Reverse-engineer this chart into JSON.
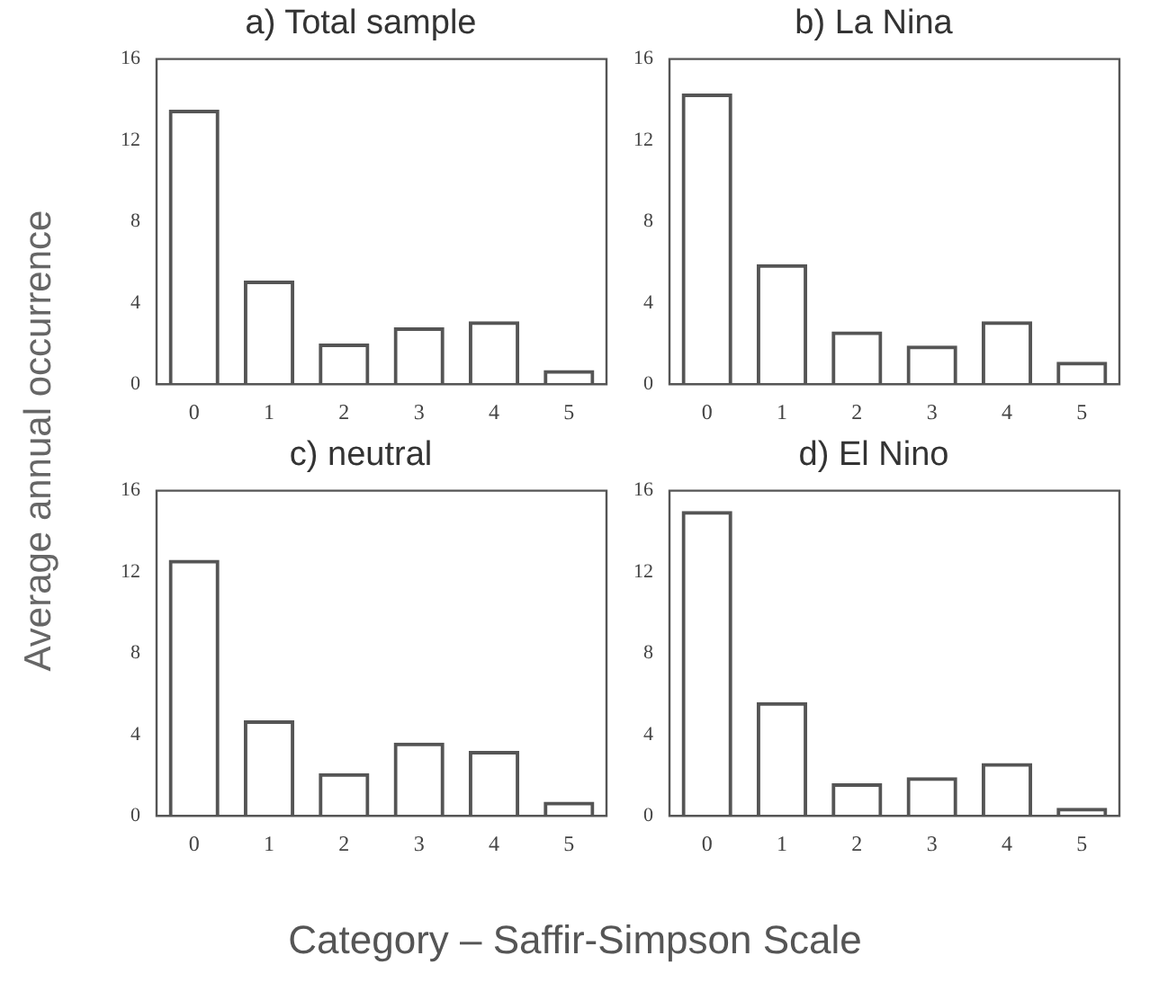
{
  "chart_data": [
    {
      "type": "bar",
      "title": "a) Total sample",
      "ylabel": "Average annual occurrence",
      "categories": [
        "0",
        "1",
        "2",
        "3",
        "4",
        "5"
      ],
      "values": [
        13.5,
        5.1,
        2.0,
        2.8,
        3.1,
        0.7
      ],
      "color": "#555555",
      "ylim": [
        0,
        16
      ],
      "yticks": [
        0,
        4,
        8,
        12,
        16
      ],
      "grid": false,
      "legend": false
    },
    {
      "type": "bar",
      "title": "b) La Nina",
      "categories": [
        "0",
        "1",
        "2",
        "3",
        "4",
        "5"
      ],
      "values": [
        14.3,
        5.9,
        2.6,
        1.9,
        3.1,
        1.1
      ],
      "color": "#555555",
      "ylim": [
        0,
        16
      ],
      "yticks": [
        0,
        4,
        8,
        12,
        16
      ],
      "grid": false,
      "legend": false
    },
    {
      "type": "bar",
      "title": "c) neutral",
      "categories": [
        "0",
        "1",
        "2",
        "3",
        "4",
        "5"
      ],
      "values": [
        12.6,
        4.7,
        2.1,
        3.6,
        3.2,
        0.7
      ],
      "color": "#555555",
      "ylim": [
        0,
        16
      ],
      "yticks": [
        0,
        4,
        8,
        12,
        16
      ],
      "grid": false,
      "legend": false
    },
    {
      "type": "bar",
      "title": "d) El Nino",
      "xlabel": "Category – Saffir-Simpson Scale",
      "categories": [
        "0",
        "1",
        "2",
        "3",
        "4",
        "5"
      ],
      "values": [
        15.0,
        5.6,
        1.6,
        1.9,
        2.6,
        0.4
      ],
      "color": "#555555",
      "ylim": [
        0,
        16
      ],
      "yticks": [
        0,
        4,
        8,
        12,
        16
      ],
      "grid": false,
      "legend": false
    }
  ]
}
